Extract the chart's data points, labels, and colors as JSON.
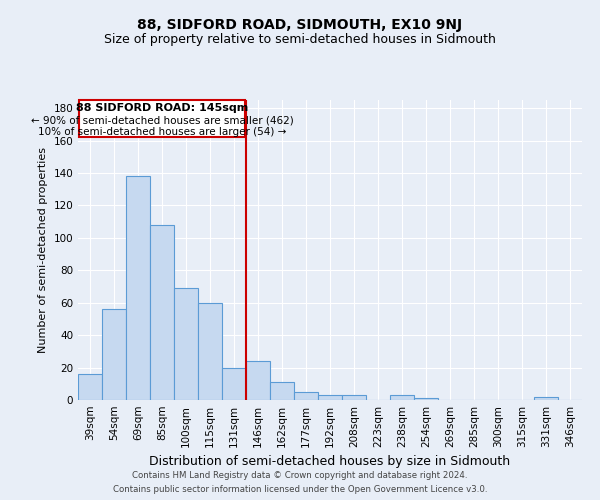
{
  "title": "88, SIDFORD ROAD, SIDMOUTH, EX10 9NJ",
  "subtitle": "Size of property relative to semi-detached houses in Sidmouth",
  "xlabel": "Distribution of semi-detached houses by size in Sidmouth",
  "ylabel": "Number of semi-detached properties",
  "footer_line1": "Contains HM Land Registry data © Crown copyright and database right 2024.",
  "footer_line2": "Contains public sector information licensed under the Open Government Licence v3.0.",
  "bar_labels": [
    "39sqm",
    "54sqm",
    "69sqm",
    "85sqm",
    "100sqm",
    "115sqm",
    "131sqm",
    "146sqm",
    "162sqm",
    "177sqm",
    "192sqm",
    "208sqm",
    "223sqm",
    "238sqm",
    "254sqm",
    "269sqm",
    "285sqm",
    "300sqm",
    "315sqm",
    "331sqm",
    "346sqm"
  ],
  "bar_values": [
    16,
    56,
    138,
    108,
    69,
    60,
    20,
    24,
    11,
    5,
    3,
    3,
    0,
    3,
    1,
    0,
    0,
    0,
    0,
    2,
    0
  ],
  "bar_color": "#c6d9f0",
  "bar_edge_color": "#5b9bd5",
  "vline_color": "#cc0000",
  "ylim": [
    0,
    185
  ],
  "yticks": [
    0,
    20,
    40,
    60,
    80,
    100,
    120,
    140,
    160,
    180
  ],
  "annotation_title": "88 SIDFORD ROAD: 145sqm",
  "annotation_line2": "← 90% of semi-detached houses are smaller (462)",
  "annotation_line3": "10% of semi-detached houses are larger (54) →",
  "annotation_box_color": "#ffffff",
  "annotation_box_edge": "#cc0000",
  "background_color": "#e8eef7",
  "grid_color": "#ffffff",
  "title_fontsize": 10,
  "subtitle_fontsize": 9,
  "ylabel_fontsize": 8,
  "xlabel_fontsize": 9,
  "tick_fontsize": 7.5,
  "annot_title_fontsize": 8,
  "annot_text_fontsize": 7.5
}
